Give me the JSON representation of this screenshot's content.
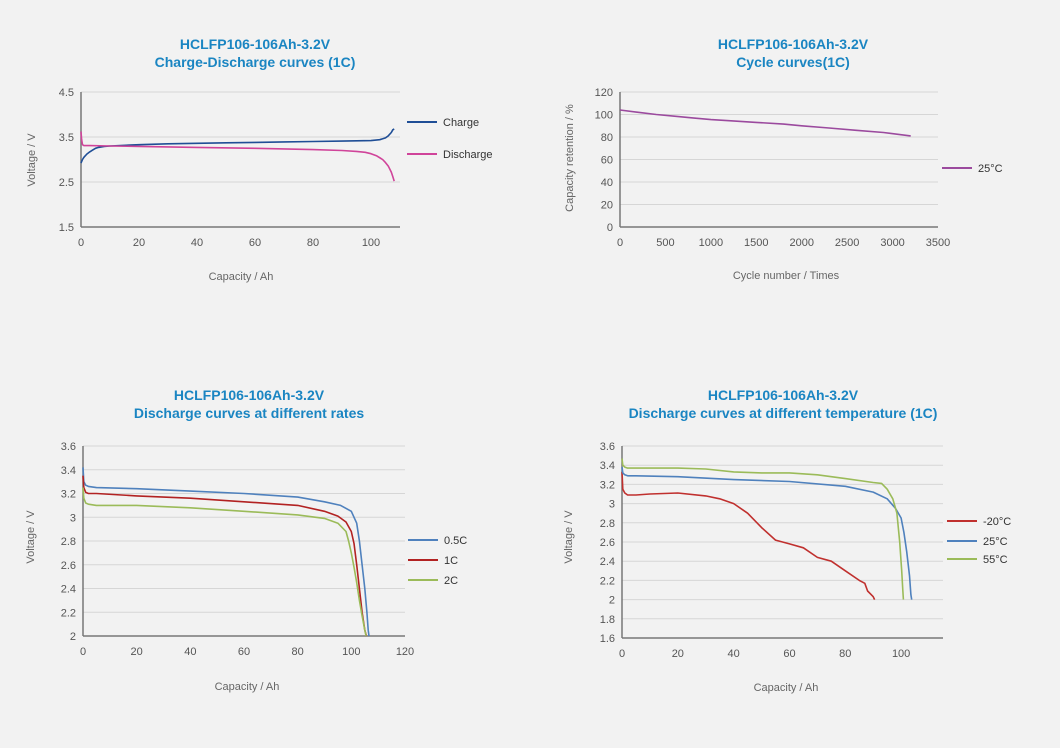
{
  "chart_data": [
    {
      "id": "c1",
      "type": "line",
      "title": "HCLFP106-106Ah-3.2V",
      "subtitle": "Charge-Discharge curves (1C)",
      "xlabel": "Capacity / Ah",
      "ylabel": "Voltage / V",
      "xlim": [
        0,
        110
      ],
      "ylim": [
        1.5,
        4.5
      ],
      "xticks": [
        "0",
        "20",
        "40",
        "60",
        "80",
        "100"
      ],
      "xtick_values": [
        0,
        20,
        40,
        60,
        80,
        100
      ],
      "yticks": [
        "1.5",
        "2.5",
        "3.5",
        "4.5"
      ],
      "ytick_values": [
        1.5,
        2.5,
        3.5,
        4.5
      ],
      "grid": true,
      "legend": "right",
      "series": [
        {
          "name": "Charge",
          "color": "#1f4e96",
          "x": [
            0,
            0.5,
            1,
            2,
            3,
            4,
            5,
            6,
            8,
            10,
            20,
            30,
            40,
            50,
            60,
            70,
            80,
            90,
            100,
            103,
            105,
            106,
            107,
            107.5,
            108
          ],
          "y": [
            2.92,
            3.0,
            3.05,
            3.12,
            3.17,
            3.21,
            3.25,
            3.27,
            3.29,
            3.3,
            3.33,
            3.35,
            3.36,
            3.37,
            3.38,
            3.39,
            3.4,
            3.41,
            3.42,
            3.44,
            3.48,
            3.53,
            3.6,
            3.66,
            3.68
          ]
        },
        {
          "name": "Discharge",
          "color": "#d0449a",
          "x": [
            0,
            0.2,
            0.5,
            1,
            3,
            10,
            20,
            40,
            60,
            80,
            90,
            95,
            98,
            100,
            102,
            104,
            105,
            106,
            107,
            107.5,
            108
          ],
          "y": [
            3.62,
            3.45,
            3.33,
            3.31,
            3.31,
            3.3,
            3.29,
            3.27,
            3.25,
            3.22,
            3.2,
            3.18,
            3.16,
            3.13,
            3.08,
            3.0,
            2.93,
            2.85,
            2.72,
            2.62,
            2.52
          ]
        }
      ]
    },
    {
      "id": "c2",
      "type": "line",
      "title": "HCLFP106-106Ah-3.2V",
      "subtitle": "Cycle curves(1C)",
      "xlabel": "Cycle number / Times",
      "ylabel": "Capacity retention / %",
      "xlim": [
        0,
        3500
      ],
      "ylim": [
        0,
        120
      ],
      "xticks": [
        "0",
        "500",
        "1000",
        "1500",
        "2000",
        "2500",
        "3000",
        "3500"
      ],
      "xtick_values": [
        0,
        500,
        1000,
        1500,
        2000,
        2500,
        3000,
        3500
      ],
      "yticks": [
        "0",
        "20",
        "40",
        "60",
        "80",
        "100",
        "120"
      ],
      "ytick_values": [
        0,
        20,
        40,
        60,
        80,
        100,
        120
      ],
      "grid": true,
      "legend": "right",
      "series": [
        {
          "name": "25°C",
          "color": "#9b4a9e",
          "x": [
            0,
            200,
            400,
            600,
            800,
            1000,
            1200,
            1500,
            1800,
            2000,
            2300,
            2600,
            2900,
            3200
          ],
          "y": [
            104,
            102,
            100,
            98.5,
            97,
            95.5,
            94.5,
            93,
            91.5,
            90,
            88,
            86,
            84,
            81
          ]
        }
      ]
    },
    {
      "id": "c3",
      "type": "line",
      "title": "HCLFP106-106Ah-3.2V",
      "subtitle": "Discharge curves at different rates",
      "xlabel": "Capacity / Ah",
      "ylabel": "Voltage / V",
      "xlim": [
        0,
        120
      ],
      "ylim": [
        2,
        3.6
      ],
      "xticks": [
        "0",
        "20",
        "40",
        "60",
        "80",
        "100",
        "120"
      ],
      "xtick_values": [
        0,
        20,
        40,
        60,
        80,
        100,
        120
      ],
      "yticks": [
        "2",
        "2.2",
        "2.4",
        "2.6",
        "2.8",
        "3",
        "3.2",
        "3.4",
        "3.6"
      ],
      "ytick_values": [
        2,
        2.2,
        2.4,
        2.6,
        2.8,
        3.0,
        3.2,
        3.4,
        3.6
      ],
      "grid": true,
      "legend": "right",
      "series": [
        {
          "name": "0.5C",
          "color": "#4f81bd",
          "x": [
            0,
            0.3,
            1,
            2,
            5,
            20,
            40,
            60,
            80,
            90,
            96,
            100,
            102,
            103,
            104,
            105,
            105.8,
            106.3,
            106.6
          ],
          "y": [
            3.42,
            3.3,
            3.27,
            3.26,
            3.25,
            3.24,
            3.22,
            3.2,
            3.17,
            3.13,
            3.1,
            3.05,
            2.95,
            2.8,
            2.6,
            2.4,
            2.2,
            2.05,
            2.0
          ]
        },
        {
          "name": "1C",
          "color": "#b22222",
          "x": [
            0,
            0.3,
            1,
            2,
            5,
            20,
            40,
            60,
            80,
            90,
            95,
            98,
            100,
            101,
            102,
            103,
            104,
            105,
            105.6
          ],
          "y": [
            3.35,
            3.25,
            3.21,
            3.2,
            3.2,
            3.18,
            3.16,
            3.13,
            3.1,
            3.05,
            3.01,
            2.96,
            2.88,
            2.78,
            2.6,
            2.4,
            2.2,
            2.05,
            2.0
          ]
        },
        {
          "name": "2C",
          "color": "#9bbb59",
          "x": [
            0,
            0.3,
            1,
            2,
            5,
            20,
            40,
            60,
            80,
            90,
            95,
            98,
            99,
            100,
            101,
            102,
            103,
            104,
            105,
            105.5
          ],
          "y": [
            3.25,
            3.16,
            3.12,
            3.11,
            3.1,
            3.1,
            3.08,
            3.05,
            3.02,
            2.99,
            2.95,
            2.88,
            2.8,
            2.7,
            2.58,
            2.45,
            2.3,
            2.17,
            2.05,
            2.0
          ]
        }
      ]
    },
    {
      "id": "c4",
      "type": "line",
      "title": "HCLFP106-106Ah-3.2V",
      "subtitle": "Discharge curves at different temperature (1C)",
      "xlabel": "Capacity / Ah",
      "ylabel": "Voltage / V",
      "xlim": [
        0,
        115
      ],
      "ylim": [
        1.6,
        3.6
      ],
      "xticks": [
        "0",
        "20",
        "40",
        "60",
        "80",
        "100"
      ],
      "xtick_values": [
        0,
        20,
        40,
        60,
        80,
        100
      ],
      "yticks": [
        "1.6",
        "1.8",
        "2",
        "2.2",
        "2.4",
        "2.6",
        "2.8",
        "3",
        "3.2",
        "3.4",
        "3.6"
      ],
      "ytick_values": [
        1.6,
        1.8,
        2.0,
        2.2,
        2.4,
        2.6,
        2.8,
        3.0,
        3.2,
        3.4,
        3.6
      ],
      "grid": true,
      "legend": "right",
      "series": [
        {
          "name": "-20°C",
          "color": "#c0302e",
          "x": [
            0,
            0.3,
            1,
            2,
            5,
            10,
            20,
            30,
            35,
            40,
            45,
            50,
            55,
            60,
            65,
            70,
            75,
            80,
            85,
            87,
            88,
            89,
            90,
            90.5
          ],
          "y": [
            3.33,
            3.15,
            3.11,
            3.09,
            3.09,
            3.1,
            3.11,
            3.08,
            3.05,
            3.0,
            2.9,
            2.75,
            2.62,
            2.58,
            2.54,
            2.44,
            2.4,
            2.3,
            2.2,
            2.17,
            2.09,
            2.06,
            2.03,
            2.0
          ]
        },
        {
          "name": "25°C",
          "color": "#4f81bd",
          "x": [
            0,
            0.3,
            1,
            2,
            5,
            20,
            40,
            60,
            80,
            90,
            95,
            98,
            100,
            101,
            102,
            103,
            103.5,
            103.8
          ],
          "y": [
            3.38,
            3.32,
            3.3,
            3.29,
            3.29,
            3.28,
            3.25,
            3.23,
            3.18,
            3.12,
            3.05,
            2.95,
            2.85,
            2.7,
            2.5,
            2.25,
            2.05,
            2.0
          ]
        },
        {
          "name": "55°C",
          "color": "#9bbb59",
          "x": [
            0,
            0.3,
            1,
            2,
            5,
            20,
            30,
            40,
            50,
            60,
            70,
            80,
            90,
            93,
            95,
            97,
            98.5,
            99.5,
            100.2,
            100.6,
            100.8
          ],
          "y": [
            3.47,
            3.4,
            3.38,
            3.37,
            3.37,
            3.37,
            3.36,
            3.33,
            3.32,
            3.32,
            3.3,
            3.26,
            3.22,
            3.21,
            3.15,
            3.05,
            2.9,
            2.6,
            2.3,
            2.1,
            2.0
          ]
        }
      ]
    }
  ]
}
